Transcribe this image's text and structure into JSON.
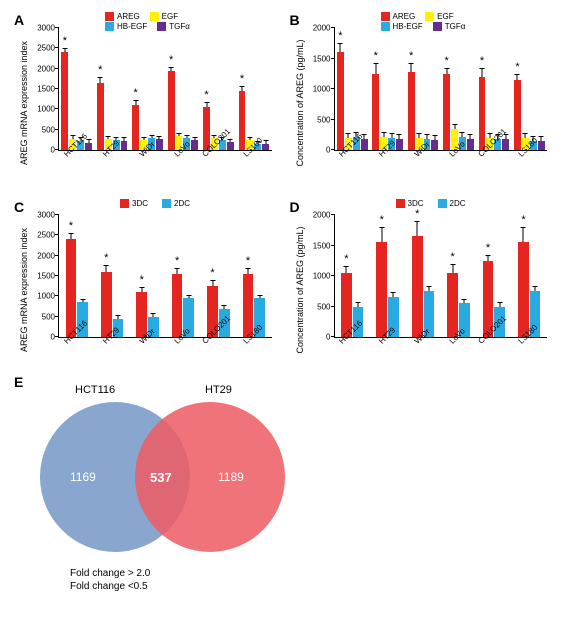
{
  "colors": {
    "areg": "#e52620",
    "egf": "#fff200",
    "hbegf": "#29abe2",
    "tgfa": "#662d91",
    "c3dc": "#e52620",
    "c2dc": "#29abe2",
    "axis": "#000000",
    "venn_left": "#7396c6",
    "venn_right": "#ef5a63"
  },
  "cats6": [
    "HCT116",
    "HT29",
    "WiDr",
    "LoVo",
    "COLO201",
    "LS180"
  ],
  "panelA": {
    "label": "A",
    "ylabel": "AREG mRNA expression index",
    "ymax": 3000,
    "ytick": 500,
    "legend": [
      [
        "AREG",
        "areg"
      ],
      [
        "HB-EGF",
        "hbegf"
      ],
      [
        "EGF",
        "egf"
      ],
      [
        "TGFα",
        "tgfa"
      ]
    ],
    "series": {
      "areg": [
        2400,
        1650,
        1100,
        1950,
        1050,
        1450
      ],
      "egf": [
        280,
        260,
        250,
        350,
        300,
        250
      ],
      "hbegf": [
        230,
        250,
        300,
        300,
        250,
        150
      ],
      "tgfa": [
        180,
        230,
        270,
        240,
        200,
        160
      ]
    },
    "err": [
      120,
      150,
      120,
      100,
      120,
      120
    ],
    "star_on": "areg"
  },
  "panelB": {
    "label": "B",
    "ylabel": "Concentration of AREG (pg/mL)",
    "ymax": 2000,
    "ytick": 500,
    "legend": [
      [
        "AREG",
        "areg"
      ],
      [
        "HB-EGF",
        "hbegf"
      ],
      [
        "EGF",
        "egf"
      ],
      [
        "TGFα",
        "tgfa"
      ]
    ],
    "series": {
      "areg": [
        1600,
        1250,
        1280,
        1250,
        1200,
        1150
      ],
      "egf": [
        200,
        220,
        200,
        350,
        200,
        200
      ],
      "hbegf": [
        220,
        200,
        180,
        220,
        180,
        150
      ],
      "tgfa": [
        180,
        180,
        160,
        180,
        180,
        150
      ]
    },
    "err": [
      150,
      170,
      150,
      100,
      150,
      100
    ],
    "star_on": "areg"
  },
  "panelC": {
    "label": "C",
    "ylabel": "AREG mRNA expression index",
    "ymax": 3000,
    "ytick": 500,
    "legend": [
      [
        "3DC",
        "c3dc"
      ],
      [
        "2DC",
        "c2dc"
      ]
    ],
    "series": {
      "c3dc": [
        2400,
        1600,
        1100,
        1550,
        1250,
        1550
      ],
      "c2dc": [
        850,
        450,
        500,
        950,
        700,
        950
      ]
    },
    "err": [
      150,
      180,
      120,
      150,
      150,
      150
    ],
    "star_on": "c3dc"
  },
  "panelD": {
    "label": "D",
    "ylabel": "Concentration of AREG (pg/mL)",
    "ymax": 2000,
    "ytick": 500,
    "legend": [
      [
        "3DC",
        "c3dc"
      ],
      [
        "2DC",
        "c2dc"
      ]
    ],
    "series": {
      "c3dc": [
        1050,
        1550,
        1650,
        1050,
        1250,
        1550
      ],
      "c2dc": [
        500,
        650,
        750,
        550,
        500,
        750
      ]
    },
    "err": [
      120,
      250,
      250,
      150,
      100,
      250
    ],
    "star_on": "c3dc"
  },
  "panelE": {
    "label": "E",
    "left_label": "HCT116",
    "right_label": "HT29",
    "left_val": "1169",
    "mid_val": "537",
    "right_val": "1189",
    "caption1": "Fold change > 2.0",
    "caption2": "Fold change <0.5"
  }
}
